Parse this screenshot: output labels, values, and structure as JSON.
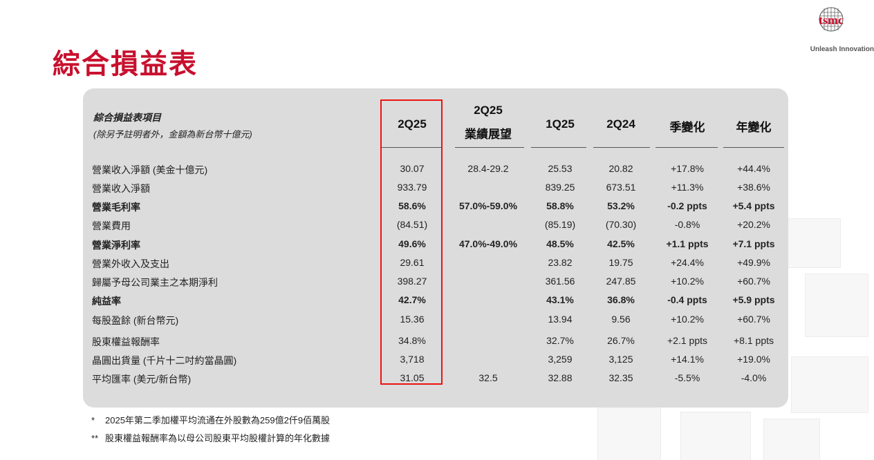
{
  "title": "綜合損益表",
  "logo": {
    "brand": "tsmc",
    "tagline": "Unleash Innovation"
  },
  "table_header": {
    "label_line1": "綜合損益表項目",
    "label_line2": "(除另予註明者外，金額為新台幣十億元)",
    "columns": [
      {
        "line1": "2Q25",
        "line2": ""
      },
      {
        "line1": "2Q25",
        "line2": "業績展望"
      },
      {
        "line1": "1Q25",
        "line2": ""
      },
      {
        "line1": "2Q24",
        "line2": ""
      },
      {
        "line1": "季變化",
        "line2": ""
      },
      {
        "line1": "年變化",
        "line2": ""
      }
    ]
  },
  "rows": [
    {
      "label": "營業收入淨額 (美金十億元)",
      "bold": false,
      "values": [
        "30.07",
        "28.4-29.2",
        "25.53",
        "20.82",
        "+17.8%",
        "+44.4%"
      ]
    },
    {
      "label": "營業收入淨額",
      "bold": false,
      "values": [
        "933.79",
        "",
        "839.25",
        "673.51",
        "+11.3%",
        "+38.6%"
      ]
    },
    {
      "label": "營業毛利率",
      "bold": true,
      "values": [
        "58.6%",
        "57.0%-59.0%",
        "58.8%",
        "53.2%",
        "-0.2 ppts",
        "+5.4 ppts"
      ]
    },
    {
      "label": "營業費用",
      "bold": false,
      "values": [
        "(84.51)",
        "",
        "(85.19)",
        "(70.30)",
        "-0.8%",
        "+20.2%"
      ]
    },
    {
      "label": "營業淨利率",
      "bold": true,
      "values": [
        "49.6%",
        "47.0%-49.0%",
        "48.5%",
        "42.5%",
        "+1.1 ppts",
        "+7.1 ppts"
      ]
    },
    {
      "label": "營業外收入及支出",
      "bold": false,
      "values": [
        "29.61",
        "",
        "23.82",
        "19.75",
        "+24.4%",
        "+49.9%"
      ]
    },
    {
      "label": "歸屬予母公司業主之本期淨利",
      "bold": false,
      "values": [
        "398.27",
        "",
        "361.56",
        "247.85",
        "+10.2%",
        "+60.7%"
      ]
    },
    {
      "label": "純益率",
      "bold": true,
      "values": [
        "42.7%",
        "",
        "43.1%",
        "36.8%",
        "-0.4 ppts",
        "+5.9 ppts"
      ]
    },
    {
      "label": "每股盈餘 (新台幣元)",
      "bold": false,
      "values": [
        "15.36",
        "",
        "13.94",
        "9.56",
        "+10.2%",
        "+60.7%"
      ]
    },
    {
      "label": "股東權益報酬率",
      "bold": false,
      "values": [
        "34.8%",
        "",
        "32.7%",
        "26.7%",
        "+2.1 ppts",
        "+8.1 ppts"
      ]
    },
    {
      "label": "晶圓出貨量 (千片十二吋約當晶圓)",
      "bold": false,
      "values": [
        "3,718",
        "",
        "3,259",
        "3,125",
        "+14.1%",
        "+19.0%"
      ]
    },
    {
      "label": "平均匯率 (美元/新台幣)",
      "bold": false,
      "values": [
        "31.05",
        "32.5",
        "32.88",
        "32.35",
        "-5.5%",
        "-4.0%"
      ]
    }
  ],
  "footnotes": [
    {
      "mark": "*",
      "text": "2025年第二季加權平均流通在外股數為259億2仟9佰萬股"
    },
    {
      "mark": "**",
      "text": "股東權益報酬率為以母公司股東平均股權計算的年化數據"
    }
  ],
  "colors": {
    "title": "#c8102e",
    "highlight": "#ee1111",
    "panel": "#dcdcdc"
  }
}
